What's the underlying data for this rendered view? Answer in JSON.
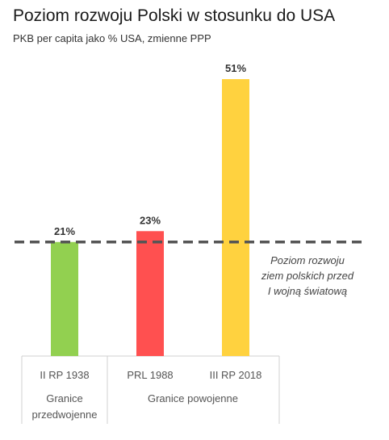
{
  "chart_data": {
    "type": "bar",
    "title": "Poziom rozwoju Polski w stosunku do USA",
    "subtitle": "PKB per capita jako % USA, zmienne PPP",
    "categories": [
      "II RP 1938",
      "PRL 1988",
      "III RP 2018"
    ],
    "values": [
      21,
      23,
      51
    ],
    "value_labels": [
      "21%",
      "23%",
      "51%"
    ],
    "colors": [
      "#92d050",
      "#ff5050",
      "#ffd23f"
    ],
    "ylim": [
      0,
      51
    ],
    "grid": false,
    "legend": "none",
    "groups": [
      {
        "label_lines": [
          "Granice",
          "przedwojenne"
        ],
        "categories": [
          "II RP 1938"
        ]
      },
      {
        "label_lines": [
          "Granice powojenne"
        ],
        "categories": [
          "PRL 1988",
          "III RP 2018"
        ]
      }
    ],
    "reference_line": {
      "value": 21,
      "style": "dashed",
      "color": "#555555",
      "label_lines": [
        "Poziom rozwoju",
        "ziem polskich przed",
        "I wojną światową"
      ]
    }
  }
}
